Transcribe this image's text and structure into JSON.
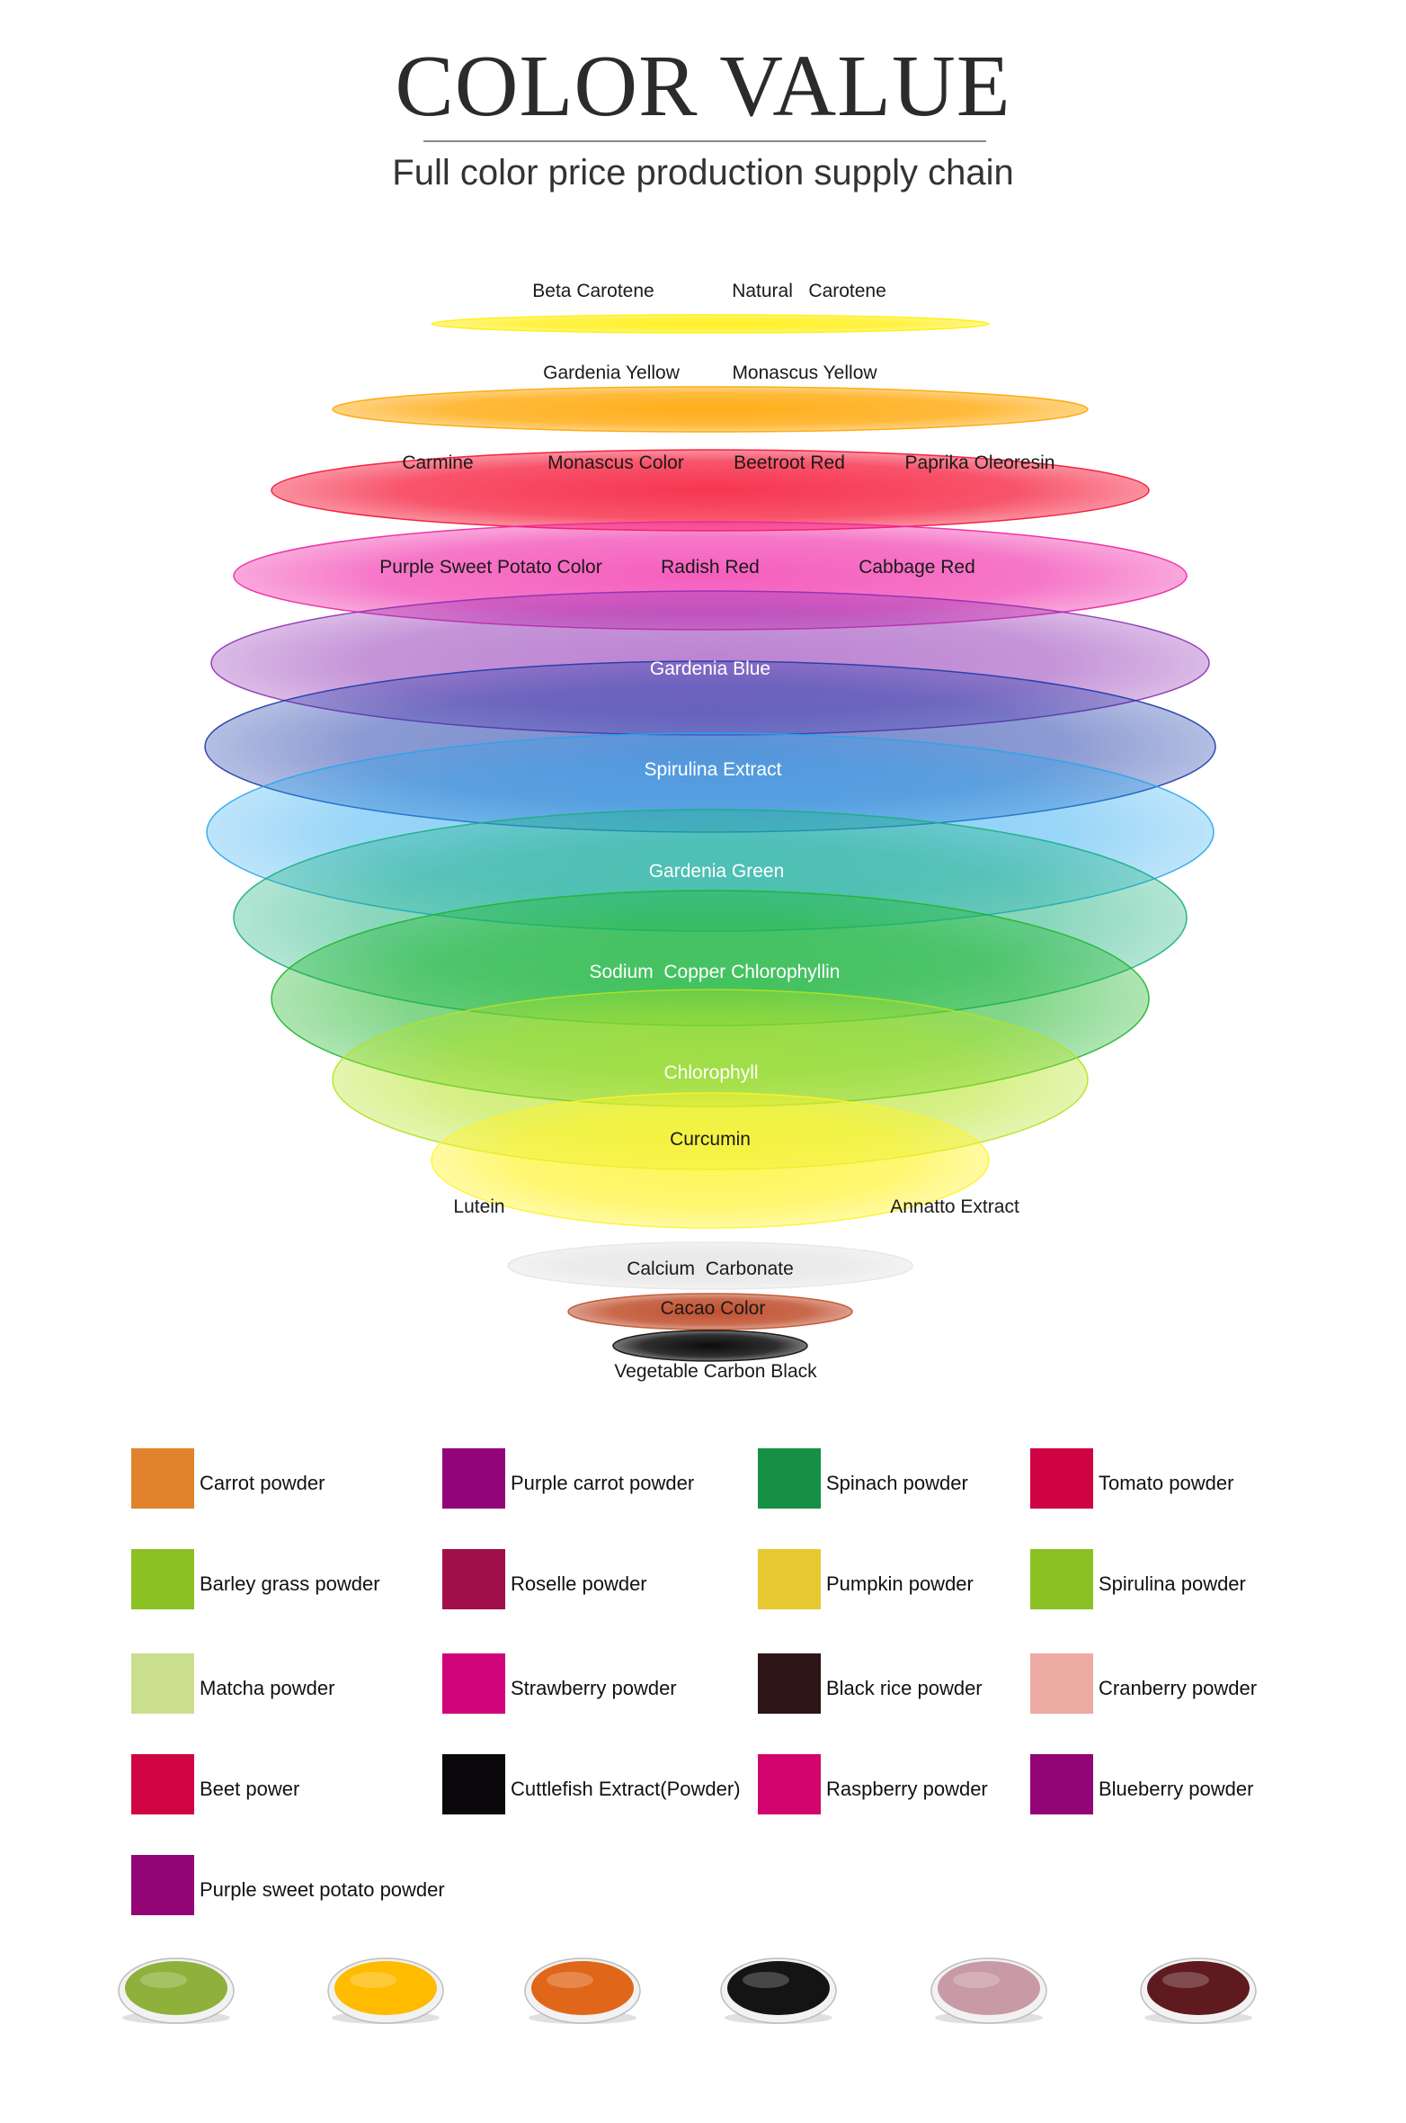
{
  "header": {
    "title": "COLOR VALUE",
    "subtitle": "Full color price production supply chain"
  },
  "layers": [
    {
      "color": "#ffee00",
      "labels": [
        "Beta Carotene",
        "Natural   Carotene"
      ]
    },
    {
      "color": "#ffa500",
      "labels": [
        "Gardenia Yellow",
        "Monascus Yellow"
      ]
    },
    {
      "color": "#f51232",
      "labels": [
        "Carmine",
        "Monascus Color",
        "Beetroot Red",
        "Paprika Oleoresin"
      ]
    },
    {
      "color": "#f021a5",
      "labels": [
        "Purple Sweet Potato Color",
        "Radish Red",
        "Cabbage Red"
      ]
    },
    {
      "color": "#8e2fb3",
      "labels": [
        "Gardenia Blue"
      ]
    },
    {
      "color": "#1c3aa8",
      "labels": [
        "Spirulina Extract"
      ]
    },
    {
      "color": "#24a6ef",
      "labels": [
        "Gardenia Green"
      ]
    },
    {
      "color": "#17b07c",
      "labels": [
        "Sodium  Copper Chlorophyllin"
      ]
    },
    {
      "color": "#1eb62a",
      "labels": [
        "Chlorophyll"
      ]
    },
    {
      "color": "#b4e321",
      "labels": [
        "Curcumin"
      ]
    },
    {
      "color": "#fff32a",
      "labels": [
        "Lutein",
        "Annatto Extract"
      ]
    },
    {
      "color": "#e6e6e6",
      "labels": [
        "Calcium  Carbonate"
      ]
    },
    {
      "color": "#c0502e",
      "labels": [
        "Cacao Color"
      ]
    },
    {
      "color": "#0b0b0b",
      "labels": [
        "Vegetable Carbon Black"
      ]
    }
  ],
  "legend": [
    {
      "label": "Carrot powder",
      "color": "#e0832a"
    },
    {
      "label": "Purple carrot powder",
      "color": "#92047a"
    },
    {
      "label": "Spinach powder",
      "color": "#159044"
    },
    {
      "label": "Tomato powder",
      "color": "#cf0343"
    },
    {
      "label": "Barley grass powder",
      "color": "#8cc124"
    },
    {
      "label": "Roselle powder",
      "color": "#a10f4a"
    },
    {
      "label": "Pumpkin powder",
      "color": "#e8c931"
    },
    {
      "label": "Spirulina powder",
      "color": "#8cc124"
    },
    {
      "label": "Matcha powder",
      "color": "#cadf8e"
    },
    {
      "label": "Strawberry powder",
      "color": "#d2047a"
    },
    {
      "label": "Black rice powder",
      "color": "#2d1518"
    },
    {
      "label": "Cranberry powder",
      "color": "#ecaaa2"
    },
    {
      "label": "Beet power",
      "color": "#d10443"
    },
    {
      "label": "Cuttlefish Extract(Powder)",
      "color": "#0a080b"
    },
    {
      "label": "Raspberry powder",
      "color": "#d2056e"
    },
    {
      "label": "Blueberry powder",
      "color": "#930477"
    },
    {
      "label": "Purple sweet potato powder",
      "color": "#930477"
    }
  ],
  "samples": [
    {
      "icon": "green-powder-bowl-icon",
      "color": "#8fb03a"
    },
    {
      "icon": "yellow-powder-bowl-icon",
      "color": "#ffbb00"
    },
    {
      "icon": "orange-powder-bowl-icon",
      "color": "#e0661a"
    },
    {
      "icon": "black-powder-bowl-icon",
      "color": "#141414"
    },
    {
      "icon": "pink-powder-bowl-icon",
      "color": "#c89aa6"
    },
    {
      "icon": "maroon-powder-bowl-icon",
      "color": "#5e1a1e"
    }
  ]
}
